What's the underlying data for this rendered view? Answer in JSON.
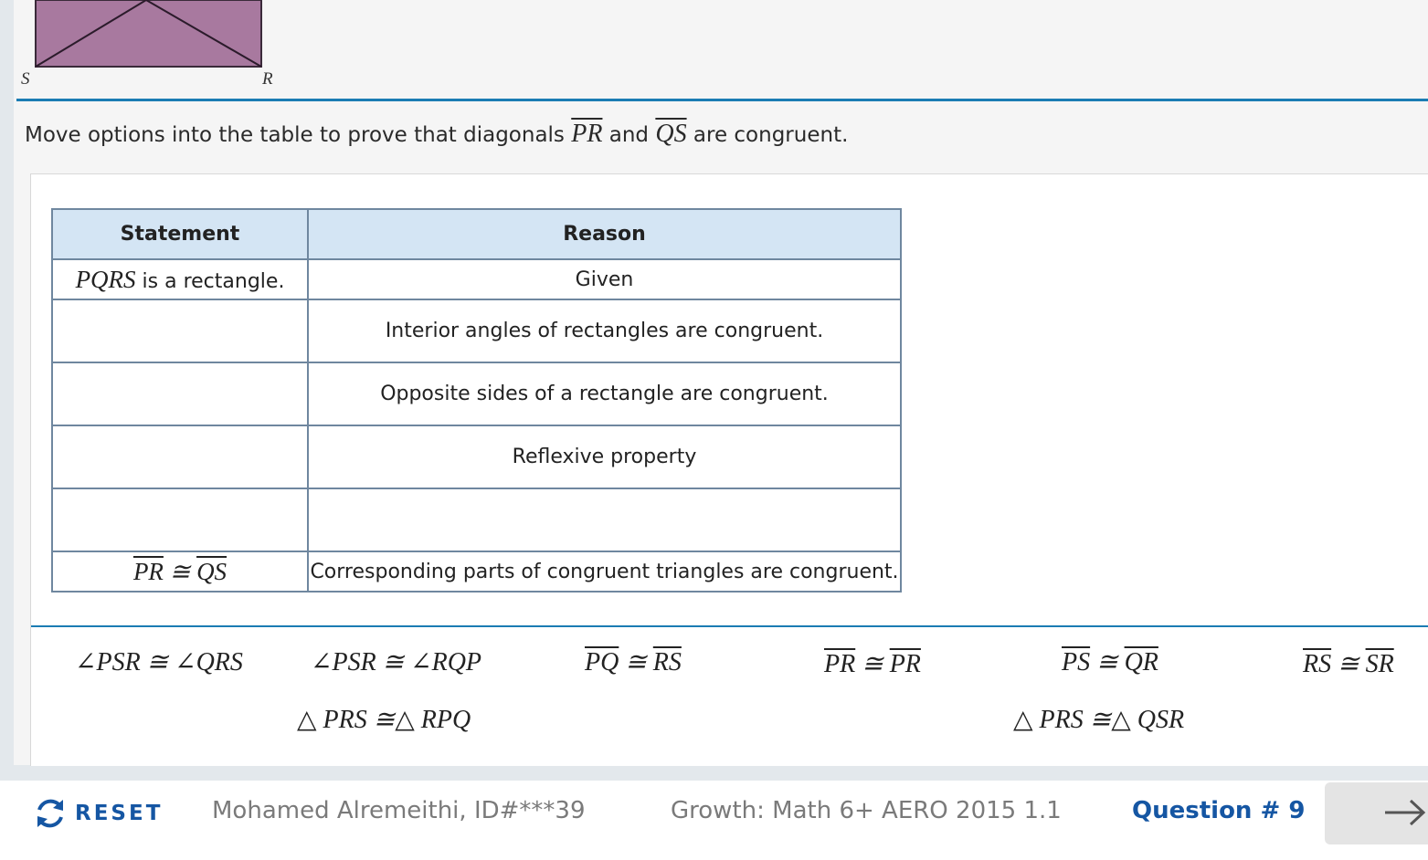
{
  "figure": {
    "vertex_s": "S",
    "vertex_r": "R",
    "fill_color": "#a8799f"
  },
  "prompt": {
    "before": "Move options into the table to prove that diagonals ",
    "seg1": "PR",
    "middle": " and ",
    "seg2": "QS",
    "after": " are congruent."
  },
  "table": {
    "headers": {
      "statement": "Statement",
      "reason": "Reason"
    },
    "rows": [
      {
        "statement_math": "PQRS",
        "statement_text": " is a rectangle.",
        "reason": "Given"
      },
      {
        "reason": "Interior angles of rectangles are congruent."
      },
      {
        "reason": "Opposite sides of a rectangle are congruent."
      },
      {
        "reason": "Reflexive property"
      },
      {
        "reason": ""
      },
      {
        "statement_left": "PR",
        "statement_sym": " ≅ ",
        "statement_right": "QS",
        "reason": "Corresponding parts of congruent triangles are congruent."
      }
    ]
  },
  "options": [
    {
      "text": "∠PSR ≅ ∠QRS"
    },
    {
      "text": "∠PSR ≅ ∠RQP"
    },
    {
      "left": "PQ",
      "sym": " ≅ ",
      "right": "RS"
    },
    {
      "left": "PR",
      "sym": " ≅ ",
      "right": "PR"
    },
    {
      "left": "PS",
      "sym": " ≅ ",
      "right": "QR"
    },
    {
      "left": "RS",
      "sym": " ≅ ",
      "right": "SR"
    },
    {
      "text": "△ PRS ≅△ RPQ"
    },
    {
      "text": "△ PRS ≅△ QSR"
    }
  ],
  "footer": {
    "reset_label": "RESET",
    "student": "Mohamed Alremeithi, ID#***39",
    "test_name": "Growth: Math 6+ AERO 2015 1.1",
    "question": "Question # 9",
    "next_icon": "arrow-right-icon",
    "reset_icon": "refresh-icon",
    "accent_color": "#1556a3"
  }
}
